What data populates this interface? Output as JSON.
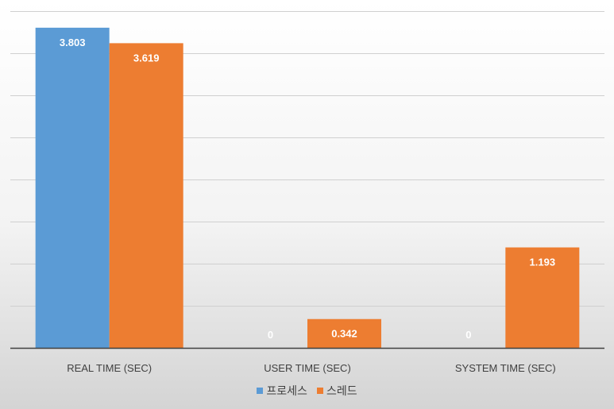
{
  "chart_data": {
    "type": "bar",
    "title": "",
    "xlabel": "",
    "ylabel": "",
    "categories": [
      "REAL TIME (SEC)",
      "USER TIME (SEC)",
      "SYSTEM TIME (SEC)"
    ],
    "series": [
      {
        "name": "프로세스",
        "color": "#5b9bd5",
        "values": [
          3.803,
          0,
          0
        ],
        "labels": [
          "3.803",
          "0",
          "0"
        ]
      },
      {
        "name": "스레드",
        "color": "#ed7d31",
        "values": [
          3.619,
          0.342,
          1.193
        ],
        "labels": [
          "3.619",
          "0.342",
          "1.193"
        ]
      }
    ],
    "ylim": [
      0,
      4
    ],
    "y_gridlines": [
      0,
      0.5,
      1,
      1.5,
      2,
      2.5,
      3,
      3.5,
      4
    ],
    "grid": true,
    "legend_position": "bottom"
  }
}
